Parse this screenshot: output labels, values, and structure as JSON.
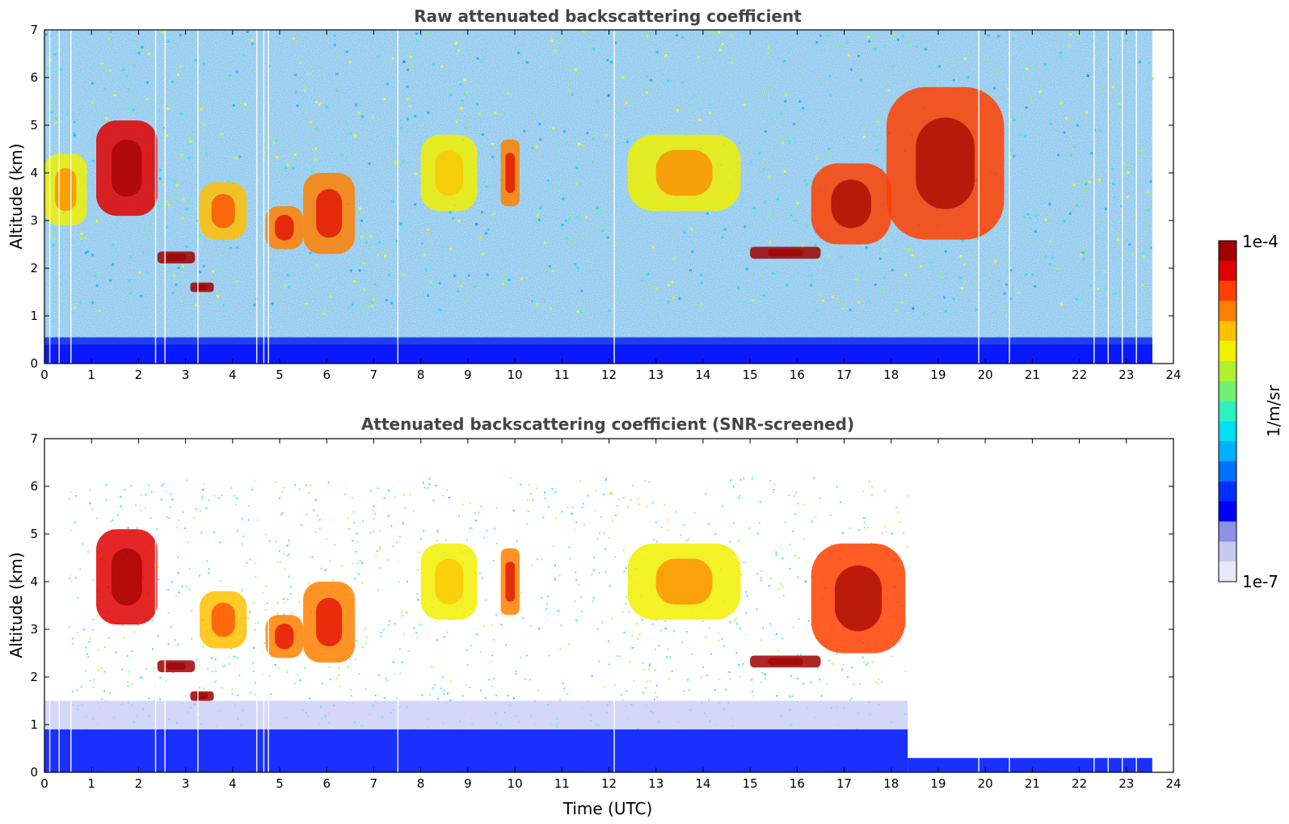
{
  "chart_data": [
    {
      "type": "heatmap",
      "title": "Raw attenuated backscattering coefficient",
      "xlabel": "",
      "ylabel": "Altitude (km)",
      "xlim": [
        0,
        24
      ],
      "ylim": [
        0,
        7
      ],
      "x_ticks": [
        "0",
        "1",
        "2",
        "3",
        "4",
        "5",
        "6",
        "7",
        "8",
        "9",
        "10",
        "11",
        "12",
        "13",
        "14",
        "15",
        "16",
        "17",
        "18",
        "19",
        "20",
        "21",
        "22",
        "23",
        "24"
      ],
      "y_ticks": [
        "0",
        "1",
        "2",
        "3",
        "4",
        "5",
        "6",
        "7"
      ],
      "data_end_hour": 23.55,
      "features": [
        {
          "name": "cloud",
          "x": [
            1.1,
            2.4
          ],
          "y": [
            3.1,
            5.1
          ],
          "level": 0.9
        },
        {
          "name": "cloud",
          "x": [
            0.0,
            0.9
          ],
          "y": [
            2.9,
            4.4
          ],
          "level": 0.7
        },
        {
          "name": "cloud",
          "x": [
            2.4,
            3.2
          ],
          "y": [
            2.1,
            2.35
          ],
          "level": 1.0
        },
        {
          "name": "cloud",
          "x": [
            3.1,
            3.6
          ],
          "y": [
            1.5,
            1.7
          ],
          "level": 1.0
        },
        {
          "name": "cloud",
          "x": [
            3.3,
            4.3
          ],
          "y": [
            2.6,
            3.8
          ],
          "level": 0.75
        },
        {
          "name": "cloud",
          "x": [
            4.7,
            5.5
          ],
          "y": [
            2.4,
            3.3
          ],
          "level": 0.8
        },
        {
          "name": "cloud",
          "x": [
            5.5,
            6.6
          ],
          "y": [
            2.3,
            4.0
          ],
          "level": 0.8
        },
        {
          "name": "cloud",
          "x": [
            8.0,
            9.2
          ],
          "y": [
            3.2,
            4.8
          ],
          "level": 0.65
        },
        {
          "name": "cloud",
          "x": [
            9.7,
            10.1
          ],
          "y": [
            3.3,
            4.7
          ],
          "level": 0.8
        },
        {
          "name": "cloud",
          "x": [
            12.4,
            14.8
          ],
          "y": [
            3.2,
            4.8
          ],
          "level": 0.7
        },
        {
          "name": "cloud",
          "x": [
            15.0,
            16.5
          ],
          "y": [
            2.2,
            2.45
          ],
          "level": 1.0
        },
        {
          "name": "cloud",
          "x": [
            16.3,
            18.0
          ],
          "y": [
            2.5,
            4.2
          ],
          "level": 0.85
        },
        {
          "name": "cloud",
          "x": [
            17.9,
            20.4
          ],
          "y": [
            2.6,
            5.8
          ],
          "level": 0.85
        }
      ]
    },
    {
      "type": "heatmap",
      "title": "Attenuated backscattering coefficient (SNR-screened)",
      "xlabel": "Time (UTC)",
      "ylabel": "Altitude (km)",
      "xlim": [
        0,
        24
      ],
      "ylim": [
        0,
        7
      ],
      "x_ticks": [
        "0",
        "1",
        "2",
        "3",
        "4",
        "5",
        "6",
        "7",
        "8",
        "9",
        "10",
        "11",
        "12",
        "13",
        "14",
        "15",
        "16",
        "17",
        "18",
        "19",
        "20",
        "21",
        "22",
        "23",
        "24"
      ],
      "y_ticks": [
        "0",
        "1",
        "2",
        "3",
        "4",
        "5",
        "6",
        "7"
      ],
      "data_end_hour": 23.55,
      "screened_cutoff_hour": 18.35,
      "features": [
        {
          "name": "cloud",
          "x": [
            1.1,
            2.4
          ],
          "y": [
            3.1,
            5.1
          ],
          "level": 0.9
        },
        {
          "name": "cloud",
          "x": [
            2.4,
            3.2
          ],
          "y": [
            2.1,
            2.35
          ],
          "level": 1.0
        },
        {
          "name": "cloud",
          "x": [
            3.1,
            3.6
          ],
          "y": [
            1.5,
            1.7
          ],
          "level": 1.0
        },
        {
          "name": "cloud",
          "x": [
            3.3,
            4.3
          ],
          "y": [
            2.6,
            3.8
          ],
          "level": 0.75
        },
        {
          "name": "cloud",
          "x": [
            4.7,
            5.5
          ],
          "y": [
            2.4,
            3.3
          ],
          "level": 0.8
        },
        {
          "name": "cloud",
          "x": [
            5.5,
            6.6
          ],
          "y": [
            2.3,
            4.0
          ],
          "level": 0.8
        },
        {
          "name": "cloud",
          "x": [
            8.0,
            9.2
          ],
          "y": [
            3.2,
            4.8
          ],
          "level": 0.65
        },
        {
          "name": "cloud",
          "x": [
            9.7,
            10.1
          ],
          "y": [
            3.3,
            4.7
          ],
          "level": 0.8
        },
        {
          "name": "cloud",
          "x": [
            12.4,
            14.8
          ],
          "y": [
            3.2,
            4.8
          ],
          "level": 0.7
        },
        {
          "name": "cloud",
          "x": [
            15.0,
            16.5
          ],
          "y": [
            2.2,
            2.45
          ],
          "level": 1.0
        },
        {
          "name": "cloud",
          "x": [
            16.3,
            18.3
          ],
          "y": [
            2.5,
            4.8
          ],
          "level": 0.85
        }
      ]
    }
  ],
  "colorbar": {
    "max_label": "1e-4",
    "min_label": "1e-7",
    "unit_label": "1/m/sr",
    "colors": [
      "#e8e8f8",
      "#c8c8f0",
      "#9090e8",
      "#0000ff",
      "#0030ff",
      "#0070ff",
      "#00b0ff",
      "#00e0f0",
      "#30f0c0",
      "#70f070",
      "#b0f030",
      "#f0f000",
      "#ffc000",
      "#ff8000",
      "#ff4000",
      "#e00000",
      "#a00000"
    ]
  }
}
